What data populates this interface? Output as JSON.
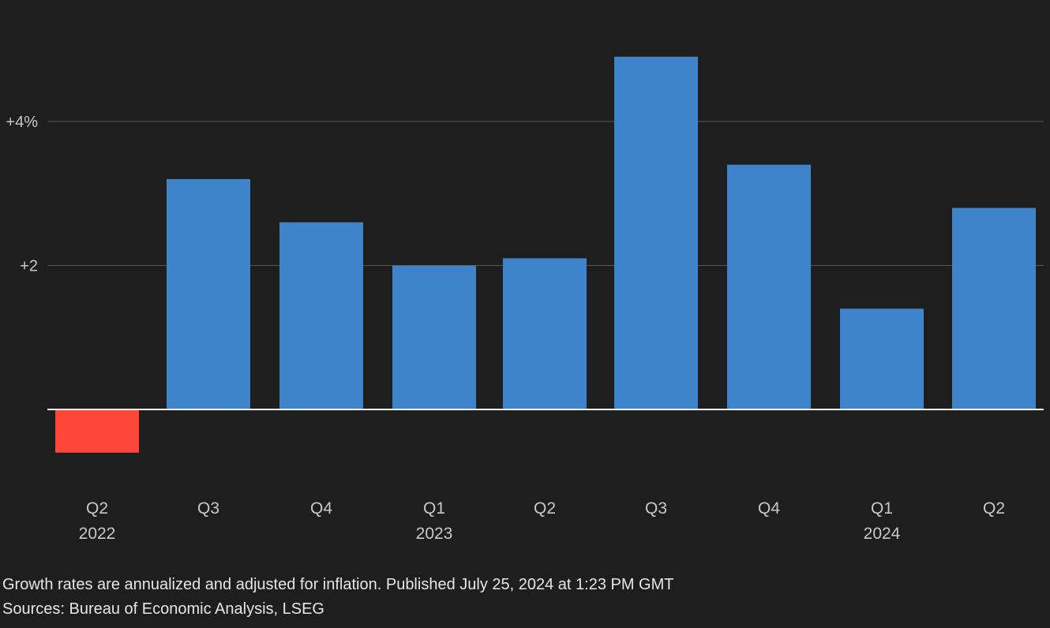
{
  "chart_data": {
    "type": "bar",
    "categories": [
      "Q2",
      "Q3",
      "Q4",
      "Q1",
      "Q2",
      "Q3",
      "Q4",
      "Q1",
      "Q2"
    ],
    "year_labels": [
      "2022",
      "",
      "",
      "2023",
      "",
      "",
      "",
      "2024",
      ""
    ],
    "values": [
      -0.6,
      3.2,
      2.6,
      2.0,
      2.1,
      4.9,
      3.4,
      1.4,
      2.8
    ],
    "y_ticks": [
      {
        "value": 4,
        "label": "+4%"
      },
      {
        "value": 2,
        "label": "+2"
      }
    ],
    "ylim": [
      -0.8,
      5.0
    ],
    "grid": true,
    "colors": {
      "positive": "#3f83cb",
      "negative": "#ff463a",
      "gridline": "#555555",
      "baseline": "#ffffff",
      "background": "#1e1e1e",
      "tick_text": "#c8c8c8"
    }
  },
  "footer": {
    "note": "Growth rates are annualized and adjusted for inflation. Published July 25, 2024 at 1:23 PM GMT",
    "sources": "Sources: Bureau of Economic Analysis, LSEG"
  }
}
